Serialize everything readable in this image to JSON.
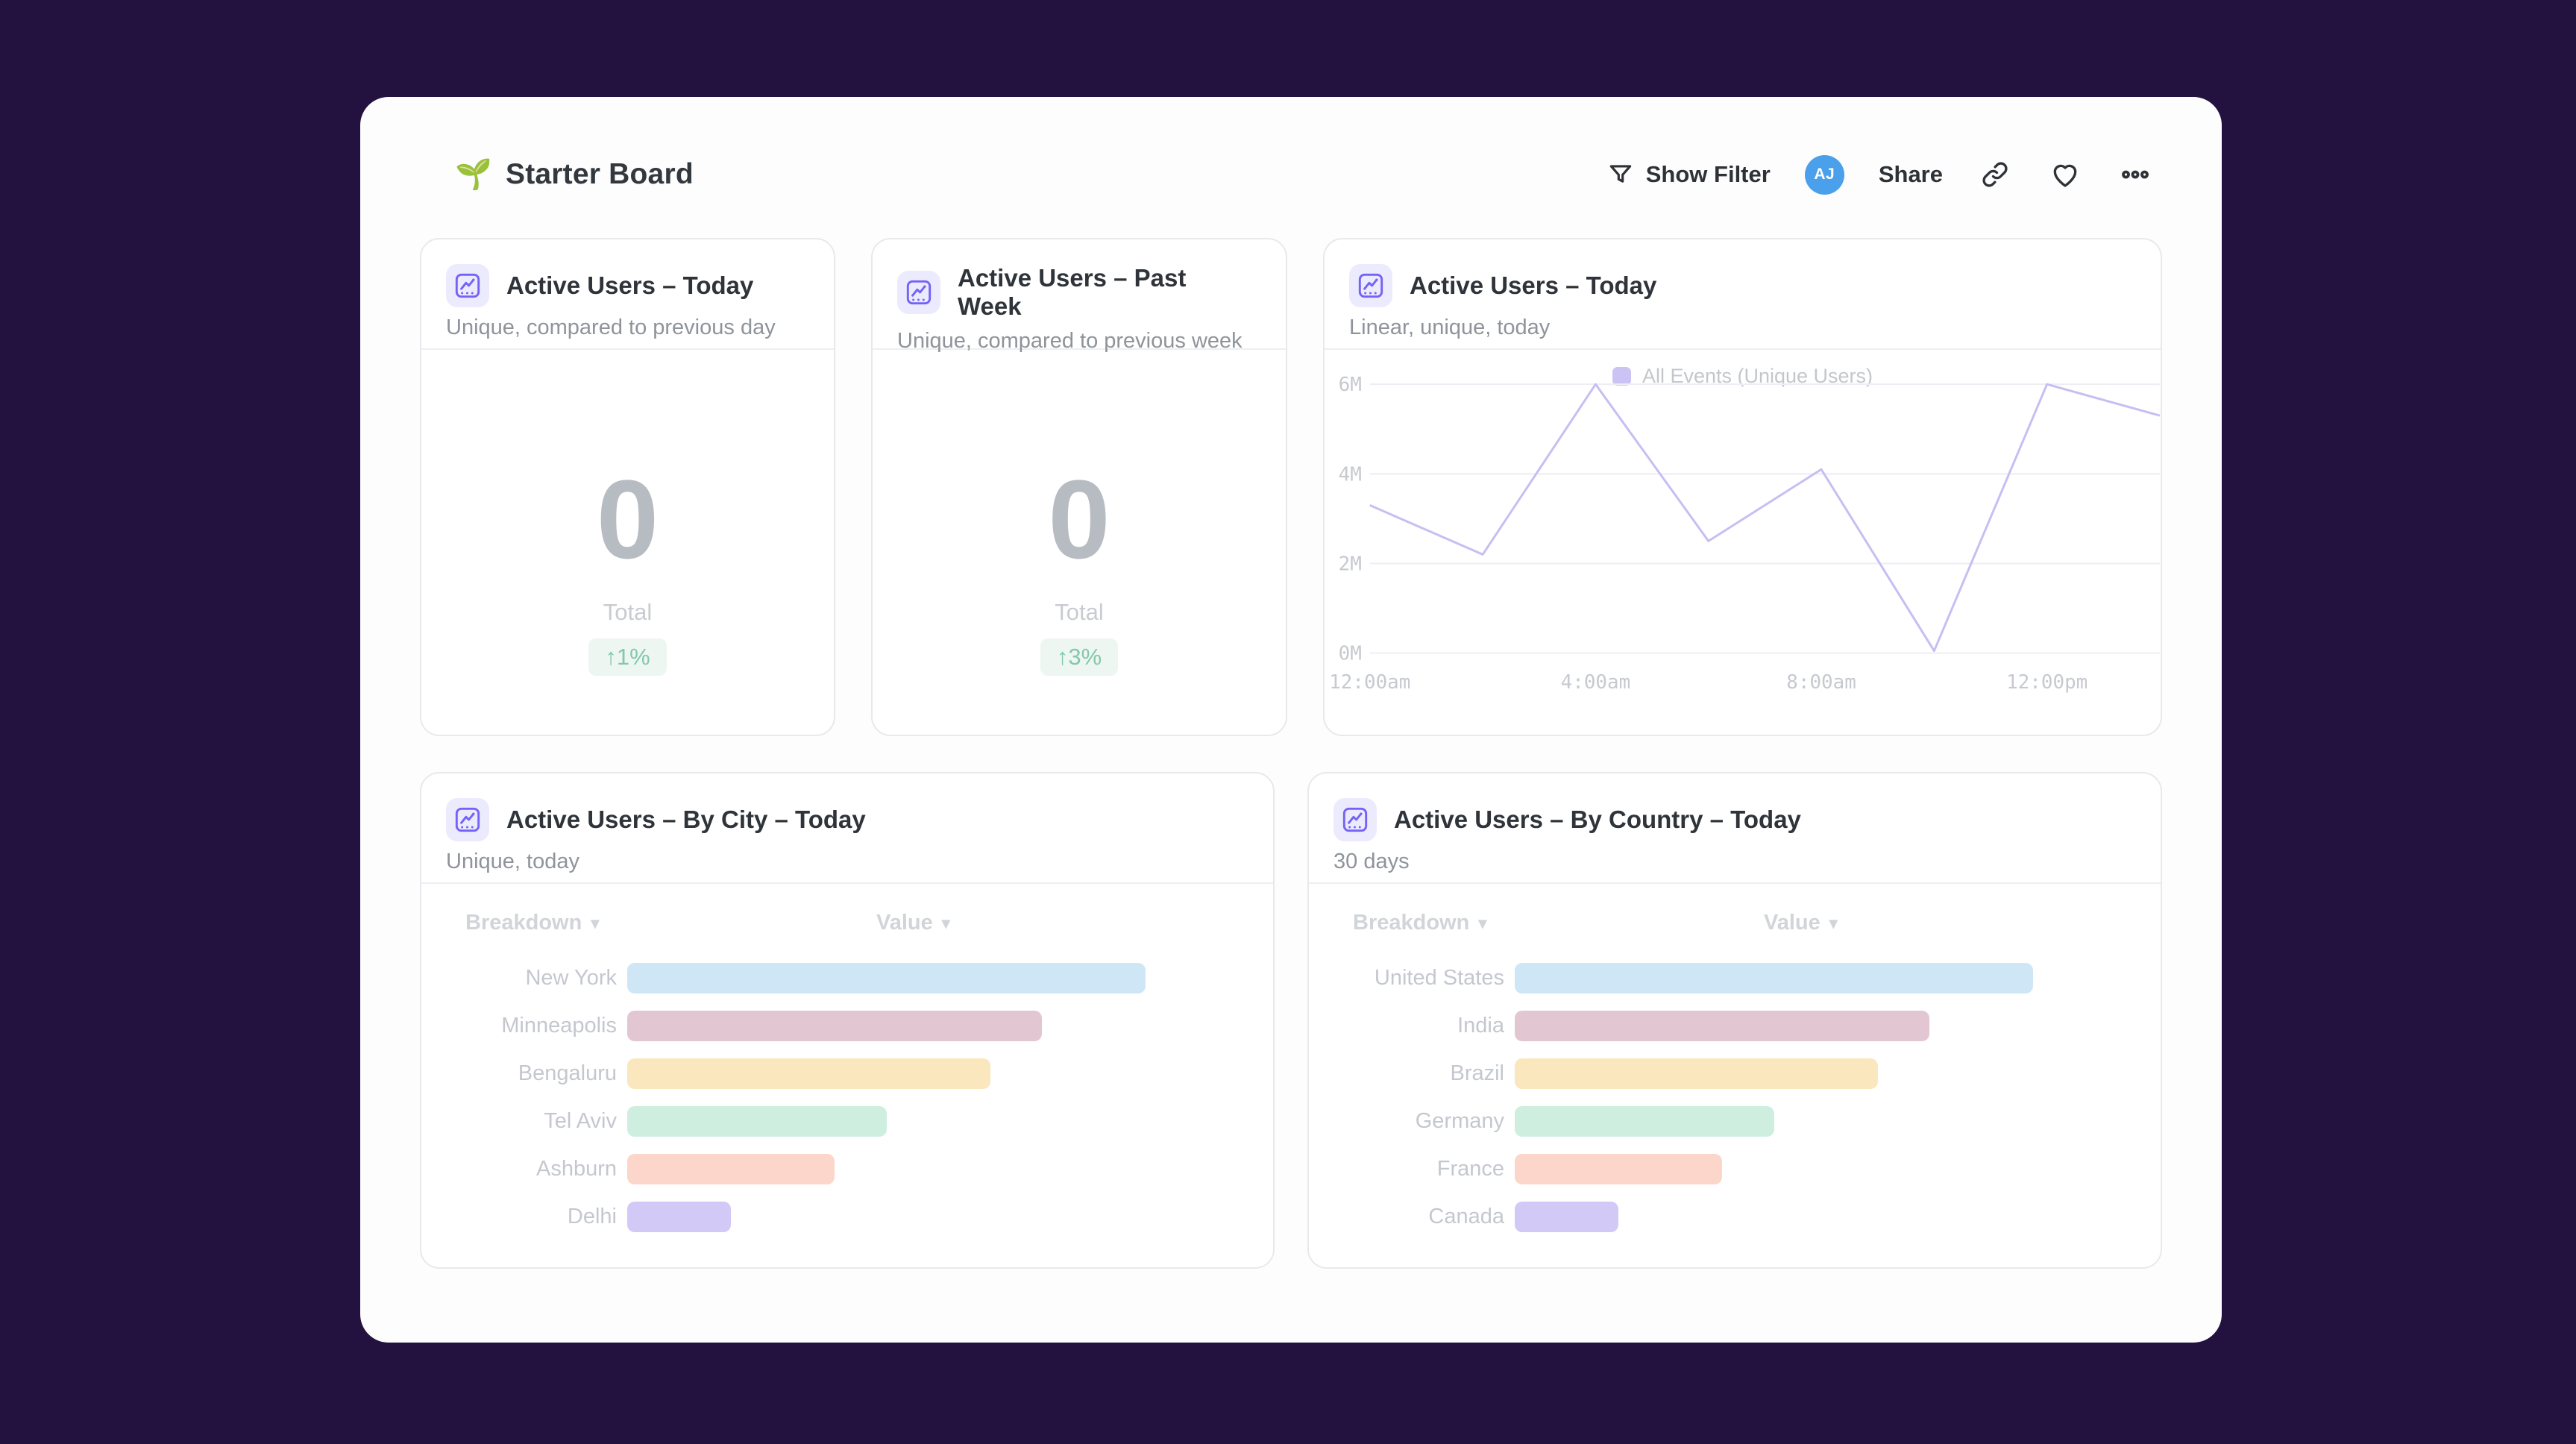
{
  "board": {
    "title": "Starter Board",
    "title_icon": "🌱"
  },
  "toolbar": {
    "show_filter_label": "Show Filter",
    "avatar_initials": "AJ",
    "avatar_color": "#4aa0ea",
    "share_label": "Share"
  },
  "icons": {
    "sort_caret": "▾"
  },
  "cards": {
    "kpi1": {
      "title": "Active Users – Today",
      "subtitle": "Unique, compared to previous day",
      "value": "0",
      "value_label": "Total",
      "delta": "↑1%"
    },
    "kpi2": {
      "title": "Active Users – Past Week",
      "subtitle": "Unique, compared to previous week",
      "value": "0",
      "value_label": "Total",
      "delta": "↑3%"
    },
    "line": {
      "title": "Active Users – Today",
      "subtitle": "Linear, unique, today"
    },
    "city": {
      "title": "Active Users – By City – Today",
      "subtitle": "Unique, today",
      "col_breakdown": "Breakdown",
      "col_value": "Value"
    },
    "country": {
      "title": "Active Users – By Country – Today",
      "subtitle": "30 days",
      "col_breakdown": "Breakdown",
      "col_value": "Value"
    }
  },
  "colors": {
    "delta_text": "#84c8aa",
    "delta_bg": "#edf6f1",
    "card_icon": "#7463f6",
    "card_icon_bg": "#ecebfd"
  },
  "chart_data": [
    {
      "id": "active-users-today-line",
      "type": "line",
      "title": "Active Users – Today",
      "legend_position": "top",
      "grid": true,
      "line_color": "#c7bef2",
      "swatch_color": "#cbc3f4",
      "ylim": [
        0,
        6
      ],
      "y_unit": "M",
      "yticks": [
        0,
        2,
        4,
        6
      ],
      "ytick_labels": [
        "0M",
        "2M",
        "4M",
        "6M"
      ],
      "xtick_labels": [
        "12:00am",
        "4:00am",
        "8:00am",
        "12:00pm"
      ],
      "xtick_point_indices": [
        0,
        2,
        4,
        6
      ],
      "series": [
        {
          "name": "All Events (Unique Users)",
          "x": [
            "12:00am",
            "2:00am",
            "4:00am",
            "6:00am",
            "8:00am",
            "10:00am",
            "12:00pm",
            "2:00pm"
          ],
          "values_millions": [
            3.3,
            2.2,
            6.0,
            2.5,
            4.1,
            0.05,
            6.0,
            5.3
          ]
        }
      ]
    },
    {
      "id": "city",
      "type": "bar",
      "orientation": "horizontal",
      "title": "Active Users – By City – Today",
      "categories": [
        "New York",
        "Minneapolis",
        "Bengaluru",
        "Tel Aviv",
        "Ashburn",
        "Delhi"
      ],
      "values_relative": [
        1.0,
        0.8,
        0.7,
        0.5,
        0.4,
        0.2
      ],
      "value_labels_shown": false,
      "colors": [
        "#cfe6f7",
        "#e2c7d2",
        "#fbe7bd",
        "#ceefe0",
        "#fcd5cb",
        "#d2c9f7"
      ]
    },
    {
      "id": "country",
      "type": "bar",
      "orientation": "horizontal",
      "title": "Active Users – By Country – Today",
      "categories": [
        "United States",
        "India",
        "Brazil",
        "Germany",
        "France",
        "Canada"
      ],
      "values_relative": [
        1.0,
        0.8,
        0.7,
        0.5,
        0.4,
        0.2
      ],
      "value_labels_shown": false,
      "colors": [
        "#cfe6f7",
        "#e2c7d2",
        "#fbe7bd",
        "#ceefe0",
        "#fcd5cb",
        "#d2c9f7"
      ]
    }
  ]
}
